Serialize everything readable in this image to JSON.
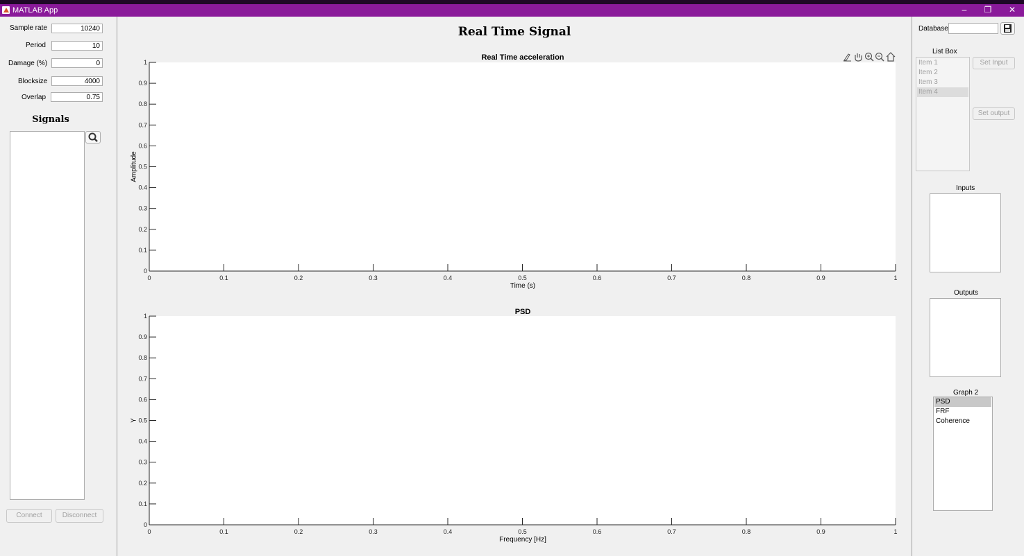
{
  "window": {
    "title": "MATLAB App",
    "minimize": "–",
    "restore": "❐",
    "close": "✕"
  },
  "params": [
    {
      "label": "Sample rate",
      "value": "10240"
    },
    {
      "label": "Period",
      "value": "10"
    },
    {
      "label": "Damage (%)",
      "value": "0"
    },
    {
      "label": "Blocksize",
      "value": "4000"
    },
    {
      "label": "Overlap",
      "value": "0.75"
    }
  ],
  "signals": {
    "title": "Signals",
    "search_icon": "magnifier-icon"
  },
  "buttons": {
    "connect": "Connect",
    "disconnect": "Disconnect",
    "set_input": "Set Input",
    "set_output": "Set output"
  },
  "main": {
    "title": "Real Time Signal"
  },
  "toolbar_icons": [
    "brush-icon",
    "pan-icon",
    "zoom-in-icon",
    "zoom-out-icon",
    "home-icon"
  ],
  "axes": {
    "top": {
      "title": "Real Time acceleration",
      "xlabel": "Time (s)",
      "ylabel": "Amplitude"
    },
    "bottom": {
      "title": "PSD",
      "xlabel": "Frequency [Hz]",
      "ylabel": "Y"
    },
    "xticks": [
      "0",
      "0.1",
      "0.2",
      "0.3",
      "0.4",
      "0.5",
      "0.6",
      "0.7",
      "0.8",
      "0.9",
      "1"
    ],
    "yticks": [
      "0",
      "0.1",
      "0.2",
      "0.3",
      "0.4",
      "0.5",
      "0.6",
      "0.7",
      "0.8",
      "0.9",
      "1"
    ]
  },
  "right": {
    "database_label": "Database",
    "database_value": "",
    "save_icon": "floppy-disk-icon",
    "listbox_title": "List Box",
    "listbox_items": [
      "Item 1",
      "Item 2",
      "Item 3",
      "Item 4"
    ],
    "listbox_selected": "Item 4",
    "inputs_title": "Inputs",
    "outputs_title": "Outputs",
    "graph2_title": "Graph 2",
    "graph2_items": [
      "PSD",
      "FRF",
      "Coherence"
    ],
    "graph2_selected": "PSD"
  },
  "colors": {
    "titlebar": "#8a1a9a",
    "topbar": "#1e0826",
    "panel": "#f0f0f0",
    "disabled_text": "#a0a0a0",
    "selected": "#c8c8c8"
  }
}
